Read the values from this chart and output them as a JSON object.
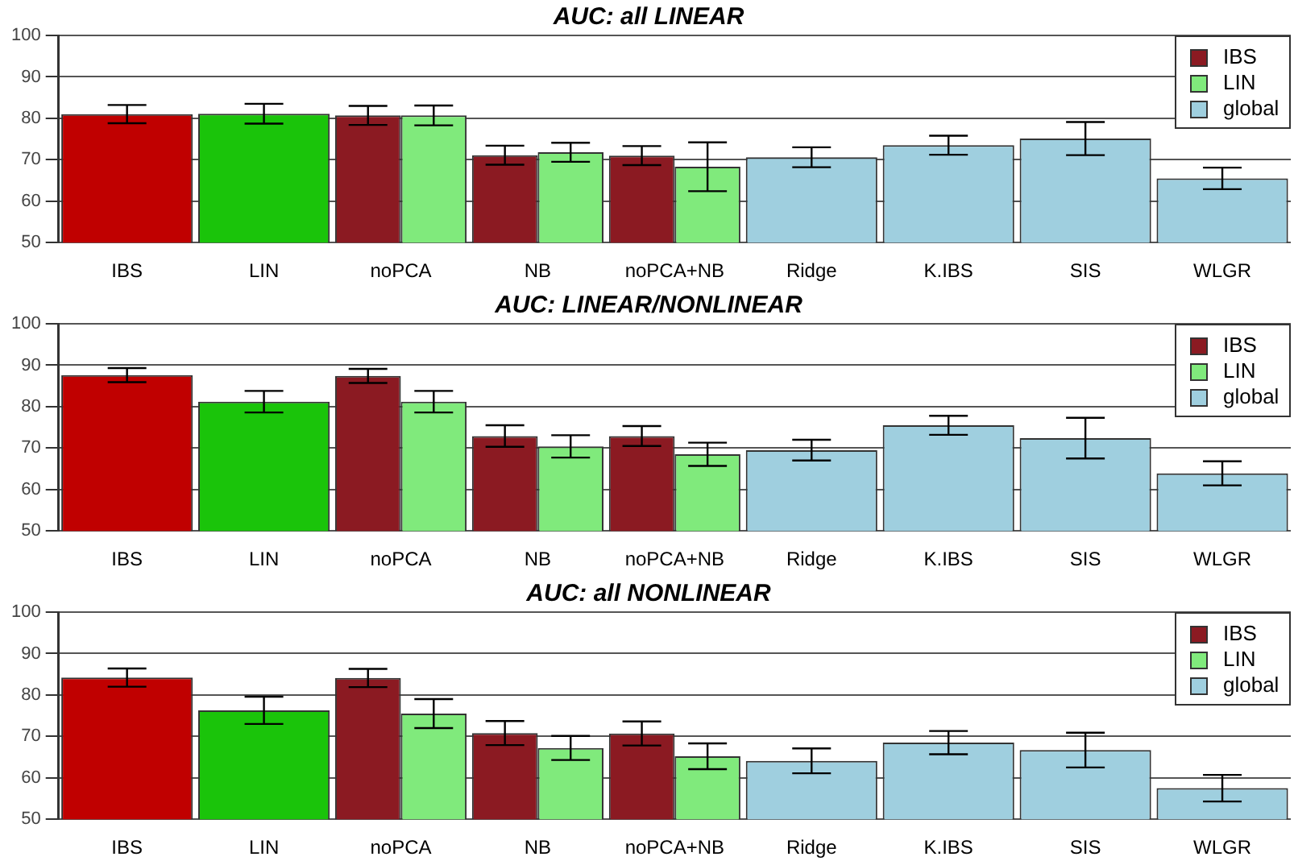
{
  "chart_data": [
    {
      "type": "bar",
      "title": "AUC: all LINEAR",
      "categories": [
        "IBS",
        "LIN",
        "noPCA",
        "NB",
        "noPCA+NB",
        "Ridge",
        "K.IBS",
        "SIS",
        "WLGR"
      ],
      "series": [
        {
          "name": "IBS",
          "color": "#8b1a22",
          "colors": [
            "#c00000",
            "#8b1a22",
            "#8b1a22",
            "#8b1a22",
            "#8b1a22",
            "#8b1a22",
            "#8b1a22",
            "#8b1a22",
            "#8b1a22"
          ],
          "values": [
            81.0,
            null,
            80.7,
            71.1,
            71.0,
            null,
            null,
            null,
            null
          ],
          "errors": [
            2.2,
            null,
            2.3,
            2.3,
            2.3,
            null,
            null,
            null,
            null
          ]
        },
        {
          "name": "LIN",
          "color": "#80ea7c",
          "colors": [
            "#1ac40a",
            "#1ac40a",
            "#80ea7c",
            "#80ea7c",
            "#80ea7c",
            "#80ea7c",
            "#80ea7c",
            "#80ea7c",
            "#80ea7c"
          ],
          "values": [
            null,
            81.1,
            80.7,
            71.8,
            68.3,
            null,
            null,
            null,
            null
          ],
          "errors": [
            null,
            2.4,
            2.4,
            2.3,
            5.9,
            null,
            null,
            null,
            null
          ]
        },
        {
          "name": "global",
          "color": "#9fcfdf",
          "values": [
            null,
            null,
            null,
            null,
            null,
            70.6,
            73.5,
            75.1,
            65.5
          ],
          "errors": [
            null,
            null,
            null,
            null,
            null,
            2.4,
            2.3,
            4.0,
            2.6
          ]
        }
      ],
      "ylim": [
        50,
        100
      ],
      "yticks": [
        50,
        60,
        70,
        80,
        90,
        100
      ],
      "grid": "y",
      "legend": "top right"
    },
    {
      "type": "bar",
      "title": "AUC: LINEAR/NONLINEAR",
      "categories": [
        "IBS",
        "LIN",
        "noPCA",
        "NB",
        "noPCA+NB",
        "Ridge",
        "K.IBS",
        "SIS",
        "WLGR"
      ],
      "series": [
        {
          "name": "IBS",
          "color": "#8b1a22",
          "colors": [
            "#c00000",
            "#8b1a22",
            "#8b1a22",
            "#8b1a22",
            "#8b1a22",
            "#8b1a22",
            "#8b1a22",
            "#8b1a22",
            "#8b1a22"
          ],
          "values": [
            87.6,
            null,
            87.4,
            72.9,
            72.9,
            null,
            null,
            null,
            null
          ],
          "errors": [
            1.7,
            null,
            1.7,
            2.6,
            2.4,
            null,
            null,
            null,
            null
          ]
        },
        {
          "name": "LIN",
          "color": "#80ea7c",
          "colors": [
            "#1ac40a",
            "#1ac40a",
            "#80ea7c",
            "#80ea7c",
            "#80ea7c",
            "#80ea7c",
            "#80ea7c",
            "#80ea7c",
            "#80ea7c"
          ],
          "values": [
            null,
            81.2,
            81.2,
            70.4,
            68.5,
            null,
            null,
            null,
            null
          ],
          "errors": [
            null,
            2.6,
            2.6,
            2.7,
            2.8,
            null,
            null,
            null,
            null
          ]
        },
        {
          "name": "global",
          "color": "#9fcfdf",
          "values": [
            null,
            null,
            null,
            null,
            null,
            69.5,
            75.5,
            72.4,
            63.9
          ],
          "errors": [
            null,
            null,
            null,
            null,
            null,
            2.5,
            2.3,
            4.9,
            2.9
          ]
        }
      ],
      "ylim": [
        50,
        100
      ],
      "yticks": [
        50,
        60,
        70,
        80,
        90,
        100
      ],
      "grid": "y",
      "legend": "top right"
    },
    {
      "type": "bar",
      "title": "AUC: all NONLINEAR",
      "categories": [
        "IBS",
        "LIN",
        "noPCA",
        "NB",
        "noPCA+NB",
        "Ridge",
        "K.IBS",
        "SIS",
        "WLGR"
      ],
      "series": [
        {
          "name": "IBS",
          "color": "#8b1a22",
          "colors": [
            "#c00000",
            "#8b1a22",
            "#8b1a22",
            "#8b1a22",
            "#8b1a22",
            "#8b1a22",
            "#8b1a22",
            "#8b1a22",
            "#8b1a22"
          ],
          "values": [
            84.2,
            null,
            84.1,
            70.8,
            70.7,
            null,
            null,
            null,
            null
          ],
          "errors": [
            2.2,
            null,
            2.2,
            2.9,
            2.9,
            null,
            null,
            null,
            null
          ]
        },
        {
          "name": "LIN",
          "color": "#80ea7c",
          "colors": [
            "#1ac40a",
            "#1ac40a",
            "#80ea7c",
            "#80ea7c",
            "#80ea7c",
            "#80ea7c",
            "#80ea7c",
            "#80ea7c",
            "#80ea7c"
          ],
          "values": [
            null,
            76.3,
            75.5,
            67.2,
            65.2,
            null,
            null,
            null,
            null
          ],
          "errors": [
            null,
            3.3,
            3.5,
            2.9,
            3.1,
            null,
            null,
            null,
            null
          ]
        },
        {
          "name": "global",
          "color": "#9fcfdf",
          "values": [
            null,
            null,
            null,
            null,
            null,
            64.1,
            68.5,
            66.7,
            57.5
          ],
          "errors": [
            null,
            null,
            null,
            null,
            null,
            3.0,
            2.8,
            4.2,
            3.2
          ]
        }
      ],
      "ylim": [
        50,
        100
      ],
      "yticks": [
        50,
        60,
        70,
        80,
        90,
        100
      ],
      "grid": "y",
      "legend": "top right"
    }
  ]
}
